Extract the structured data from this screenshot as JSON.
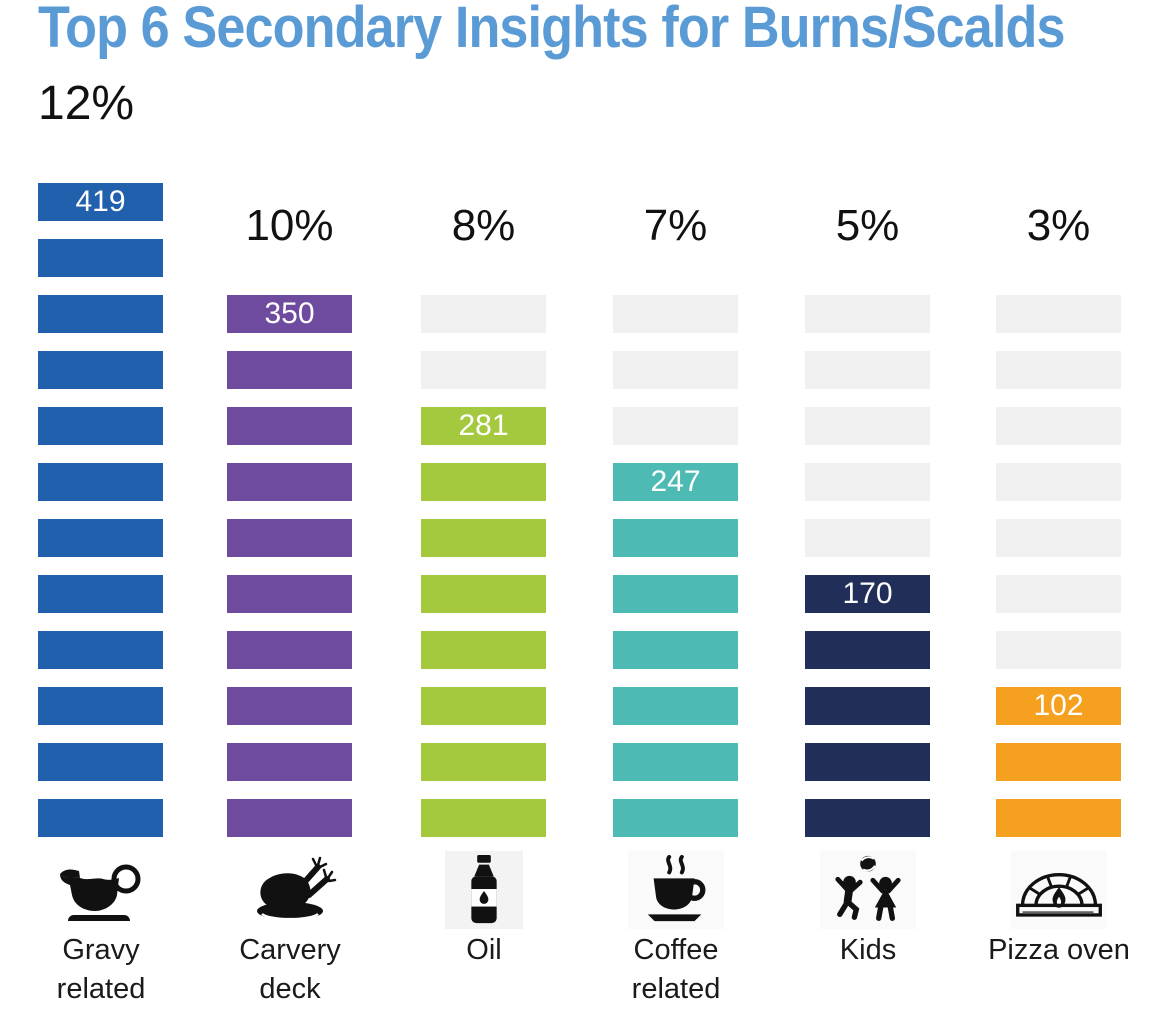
{
  "title": "Top 6 Secondary Insights for Burns/Scalds",
  "title_color": "#5B9BD5",
  "chart_data": {
    "type": "bar",
    "subtype": "unit-pictogram-columns",
    "title": "Top 6 Secondary Insights for Burns/Scalds",
    "unit_rows_total": 12,
    "row_unit_percent": 1,
    "empty_color": "#F0F0F0",
    "legend": "none",
    "grid": "off",
    "categories": [
      "Gravy related",
      "Carvery deck",
      "Oil",
      "Coffee related",
      "Kids",
      "Pizza oven"
    ],
    "columns": [
      {
        "label": "Gravy related",
        "label_lines": [
          "Gravy",
          "related"
        ],
        "percent": "12%",
        "value": 419,
        "filled_rows": 12,
        "color": "#2160AC",
        "icon": "gravy-boat-icon"
      },
      {
        "label": "Carvery deck",
        "label_lines": [
          "Carvery",
          "deck"
        ],
        "percent": "10%",
        "value": 350,
        "filled_rows": 10,
        "color": "#6E4B9E",
        "icon": "turkey-platter-icon"
      },
      {
        "label": "Oil",
        "label_lines": [
          "Oil"
        ],
        "percent": "8%",
        "value": 281,
        "filled_rows": 8,
        "color": "#A4C93F",
        "icon": "oil-bottle-icon"
      },
      {
        "label": "Coffee related",
        "label_lines": [
          "Coffee",
          "related"
        ],
        "percent": "7%",
        "value": 247,
        "filled_rows": 7,
        "color": "#4EBAB4",
        "icon": "coffee-cup-icon"
      },
      {
        "label": "Kids",
        "label_lines": [
          "Kids"
        ],
        "percent": "5%",
        "value": 170,
        "filled_rows": 5,
        "color": "#222E5A",
        "icon": "kids-playing-icon"
      },
      {
        "label": "Pizza oven",
        "label_lines": [
          "Pizza oven"
        ],
        "percent": "3%",
        "value": 102,
        "filled_rows": 3,
        "color": "#F5A01F",
        "icon": "pizza-oven-icon"
      }
    ]
  }
}
